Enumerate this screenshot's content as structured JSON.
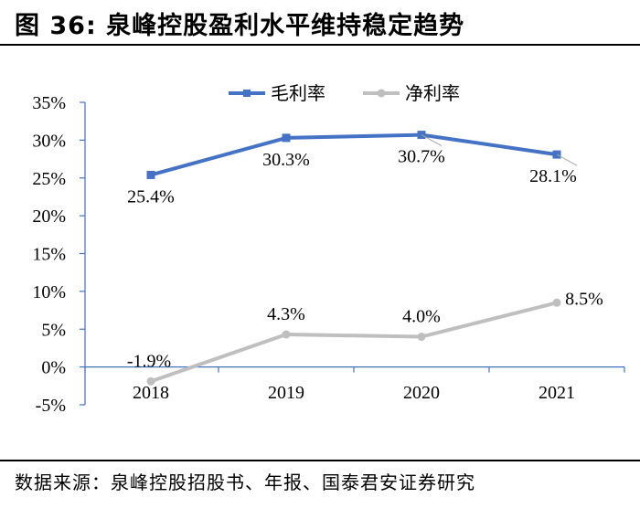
{
  "figure": {
    "title": "图 36: 泉峰控股盈利水平维持稳定趋势",
    "source": "数据来源：泉峰控股招股书、年报、国泰君安证券研究"
  },
  "colors": {
    "gross": "#4472C4",
    "net": "#BFBFBF",
    "axis": "#4472C4"
  },
  "chart_data": {
    "type": "line",
    "categories": [
      "2018",
      "2019",
      "2020",
      "2021"
    ],
    "series": [
      {
        "name": "毛利率",
        "values": [
          25.4,
          30.3,
          30.7,
          28.1
        ],
        "labels": [
          "25.4%",
          "30.3%",
          "30.7%",
          "28.1%"
        ],
        "marker": "square"
      },
      {
        "name": "净利率",
        "values": [
          -1.9,
          4.3,
          4.0,
          8.5
        ],
        "labels": [
          "-1.9%",
          "4.3%",
          "4.0%",
          "8.5%"
        ],
        "marker": "circle"
      }
    ],
    "y_ticks": [
      "35%",
      "30%",
      "25%",
      "20%",
      "15%",
      "10%",
      "5%",
      "0%",
      "-5%"
    ],
    "y_tick_values": [
      35,
      30,
      25,
      20,
      15,
      10,
      5,
      0,
      -5
    ],
    "ylim": [
      -5,
      35
    ],
    "grid": false,
    "legend_position": "top-center"
  }
}
